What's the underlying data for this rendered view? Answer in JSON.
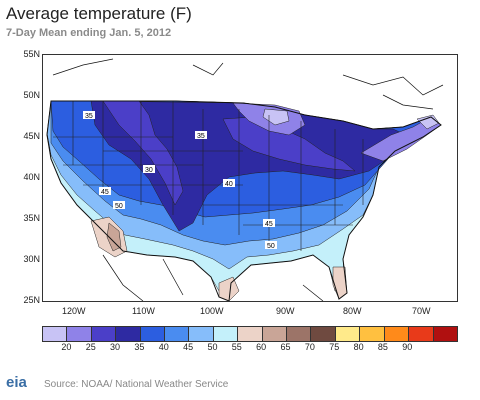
{
  "header": {
    "title": "Average temperature (F)",
    "subtitle": "7-Day Mean ending Jan. 5, 2012"
  },
  "map": {
    "lat_labels": [
      "55N",
      "50N",
      "45N",
      "40N",
      "35N",
      "30N",
      "25N"
    ],
    "lon_labels": [
      "120W",
      "110W",
      "100W",
      "90W",
      "80W",
      "70W"
    ],
    "contour_labels": [
      "35",
      "30",
      "35",
      "40",
      "45",
      "50",
      "45",
      "50",
      "40"
    ],
    "region_colors": {
      "c20": "#c8c3f5",
      "c25": "#8f82e8",
      "c30": "#4b3fc8",
      "c35": "#2e2aa2",
      "c40": "#2c5ee0",
      "c45": "#4a8cf0",
      "c50": "#86bdfa",
      "c55": "#c4f0fa",
      "c60": "#ecd3c8",
      "c65": "#c9a597"
    }
  },
  "legend": {
    "colors": [
      "#c8c3f5",
      "#8f82e8",
      "#4b3fc8",
      "#2e2aa2",
      "#2c5ee0",
      "#4a8cf0",
      "#86bdfa",
      "#c4f0fa",
      "#ecd3c8",
      "#c9a597",
      "#9c7468",
      "#6f4a40",
      "#ffea8a",
      "#ffc040",
      "#ff8a1a",
      "#e83a1a",
      "#b01010"
    ],
    "labels": [
      "20",
      "25",
      "30",
      "35",
      "40",
      "45",
      "50",
      "55",
      "60",
      "65",
      "70",
      "75",
      "80",
      "85",
      "90"
    ]
  },
  "footer": {
    "logo_text": "eia",
    "source": "Source: NOAA/ National Weather Service"
  }
}
